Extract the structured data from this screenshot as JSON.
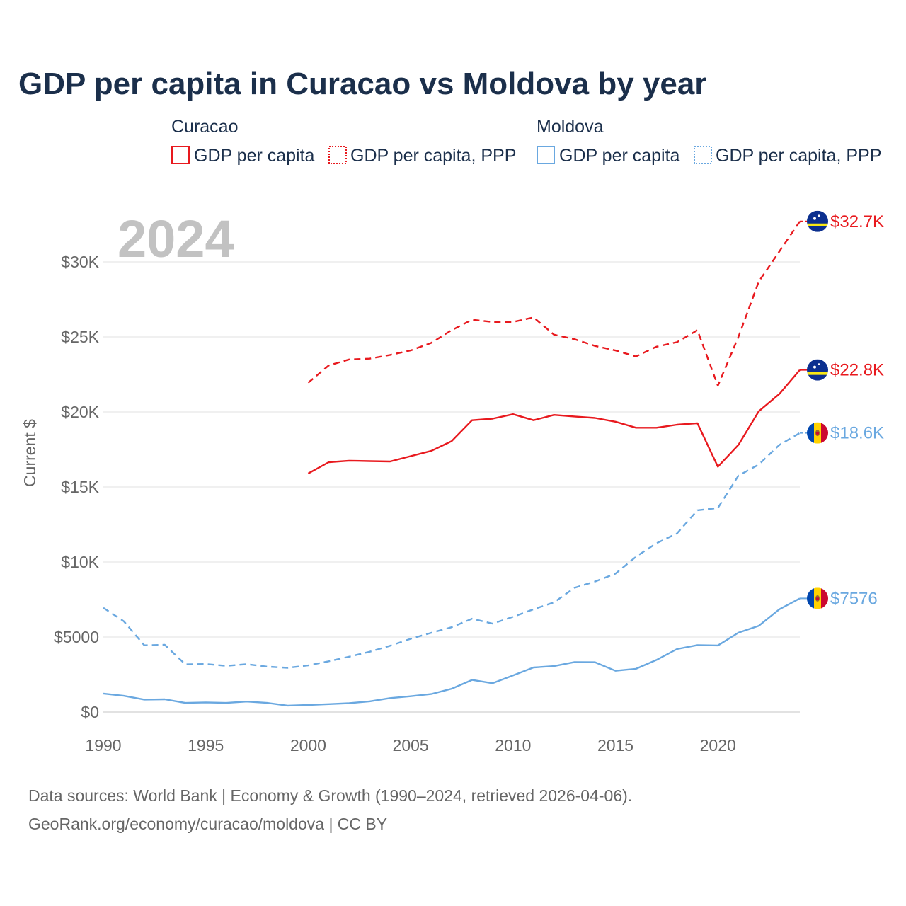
{
  "chart_data": {
    "type": "line",
    "title": "GDP per capita in Curacao vs Moldova by year",
    "xlabel": "",
    "ylabel": "Current $",
    "watermark_year": "2024",
    "xlim": [
      1990,
      2024
    ],
    "ylim": [
      0,
      33000
    ],
    "x_ticks": [
      1990,
      1995,
      2000,
      2005,
      2010,
      2015,
      2020
    ],
    "x_tick_labels": [
      "1990",
      "1995",
      "2000",
      "2005",
      "2010",
      "2015",
      "2020"
    ],
    "y_ticks": [
      0,
      5000,
      10000,
      15000,
      20000,
      25000,
      30000
    ],
    "y_tick_labels": [
      "$0",
      "$5000",
      "$10K",
      "$15K",
      "$20K",
      "$25K",
      "$30K"
    ],
    "grid": true,
    "legend": {
      "placement": "top",
      "groups": [
        {
          "name": "Curacao",
          "items": [
            "GDP per capita",
            "GDP per capita, PPP"
          ]
        },
        {
          "name": "Moldova",
          "items": [
            "GDP per capita",
            "GDP per capita, PPP"
          ]
        }
      ]
    },
    "series": [
      {
        "name": "Curacao GDP per capita",
        "color": "#e8191e",
        "style": "solid",
        "end_label": "$22.8K",
        "flag": "curacao",
        "x": [
          2000,
          2001,
          2002,
          2003,
          2004,
          2005,
          2006,
          2007,
          2008,
          2009,
          2010,
          2011,
          2012,
          2013,
          2014,
          2015,
          2016,
          2017,
          2018,
          2019,
          2020,
          2021,
          2022,
          2023,
          2024
        ],
        "values": [
          15900,
          16650,
          16750,
          16720,
          16700,
          17050,
          17400,
          18050,
          19450,
          19550,
          19850,
          19450,
          19800,
          19700,
          19600,
          19350,
          18950,
          18950,
          19150,
          19250,
          16350,
          17800,
          20050,
          21200,
          22800
        ]
      },
      {
        "name": "Curacao GDP per capita, PPP",
        "color": "#e8191e",
        "style": "dashed",
        "end_label": "$32.7K",
        "flag": "curacao",
        "x": [
          2000,
          2001,
          2002,
          2003,
          2004,
          2005,
          2006,
          2007,
          2008,
          2009,
          2010,
          2011,
          2012,
          2013,
          2014,
          2015,
          2016,
          2017,
          2018,
          2019,
          2020,
          2021,
          2022,
          2023,
          2024
        ],
        "values": [
          21950,
          23100,
          23500,
          23550,
          23800,
          24100,
          24600,
          25450,
          26150,
          26000,
          26000,
          26300,
          25150,
          24850,
          24400,
          24100,
          23700,
          24350,
          24650,
          25450,
          21750,
          25000,
          28700,
          30700,
          32700
        ]
      },
      {
        "name": "Moldova GDP per capita",
        "color": "#6aa8e0",
        "style": "solid",
        "end_label": "$7576",
        "flag": "moldova",
        "x": [
          1990,
          1991,
          1992,
          1993,
          1994,
          1995,
          1996,
          1997,
          1998,
          1999,
          2000,
          2001,
          2002,
          2003,
          2004,
          2005,
          2006,
          2007,
          2008,
          2009,
          2010,
          2011,
          2012,
          2013,
          2014,
          2015,
          2016,
          2017,
          2018,
          2019,
          2020,
          2021,
          2022,
          2023,
          2024
        ],
        "values": [
          1230,
          1080,
          830,
          850,
          610,
          640,
          610,
          700,
          610,
          430,
          470,
          530,
          590,
          710,
          930,
          1050,
          1200,
          1550,
          2140,
          1920,
          2440,
          2970,
          3060,
          3330,
          3320,
          2750,
          2880,
          3470,
          4200,
          4460,
          4440,
          5290,
          5750,
          6850,
          7576
        ]
      },
      {
        "name": "Moldova GDP per capita, PPP",
        "color": "#6aa8e0",
        "style": "dashed",
        "end_label": "$18.6K",
        "flag": "moldova",
        "x": [
          1990,
          1991,
          1992,
          1993,
          1994,
          1995,
          1996,
          1997,
          1998,
          1999,
          2000,
          2001,
          2002,
          2003,
          2004,
          2005,
          2006,
          2007,
          2008,
          2009,
          2010,
          2011,
          2012,
          2013,
          2014,
          2015,
          2016,
          2017,
          2018,
          2019,
          2020,
          2021,
          2022,
          2023,
          2024
        ],
        "values": [
          6950,
          6050,
          4450,
          4480,
          3180,
          3200,
          3080,
          3190,
          3030,
          2950,
          3110,
          3380,
          3690,
          4020,
          4420,
          4880,
          5280,
          5650,
          6220,
          5890,
          6350,
          6850,
          7310,
          8280,
          8700,
          9220,
          10350,
          11250,
          11900,
          13450,
          13600,
          15750,
          16500,
          17800,
          18600
        ]
      }
    ]
  },
  "colors": {
    "curacao": "#e8191e",
    "moldova": "#6aa8e0",
    "title": "#1b2f4b",
    "axis_text": "#666666",
    "grid": "#e6e6e6",
    "watermark": "#c2c2c2"
  },
  "footer": {
    "line1": "Data sources: World Bank | Economy & Growth (1990–2024, retrieved 2026-04-06).",
    "line2": "GeoRank.org/economy/curacao/moldova | CC BY"
  }
}
